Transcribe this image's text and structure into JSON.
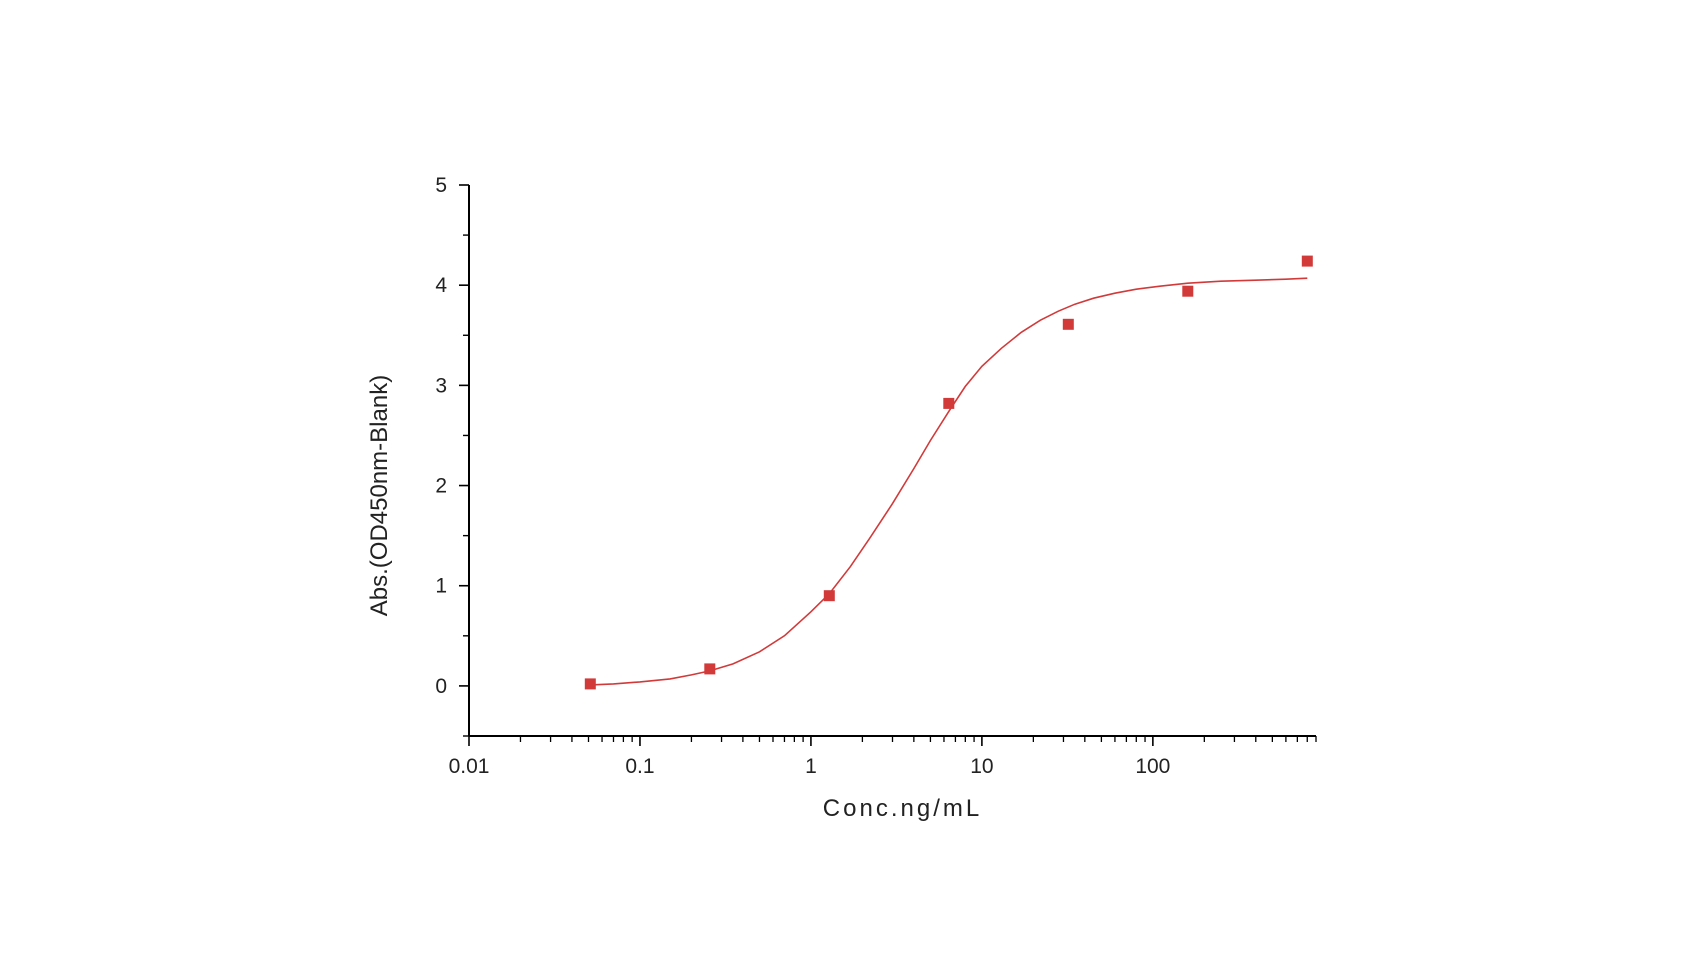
{
  "chart_data": {
    "type": "scatter",
    "title": "",
    "xlabel": "Conc.ng/mL",
    "ylabel": "Abs.(OD450nm-Blank)",
    "x_scale": "log",
    "xlim": [
      0.01,
      900
    ],
    "ylim": [
      -0.5,
      5
    ],
    "x_ticks": [
      0.01,
      0.1,
      1,
      10,
      100
    ],
    "x_tick_labels": [
      "0.01",
      "0.1",
      "1",
      "10",
      "100"
    ],
    "y_ticks": [
      0,
      1,
      2,
      3,
      4,
      5
    ],
    "y_tick_labels": [
      "0",
      "1",
      "2",
      "3",
      "4",
      "5"
    ],
    "grid": false,
    "legend": "none",
    "colors": {
      "series": "#d23a3a",
      "axis": "#000000"
    },
    "series": [
      {
        "type": "scatter",
        "marker": "square",
        "x": [
          0.0512,
          0.256,
          1.28,
          6.4,
          32,
          160,
          800
        ],
        "y": [
          0.02,
          0.17,
          0.9,
          2.82,
          3.61,
          3.94,
          4.24
        ]
      },
      {
        "type": "line",
        "x": [
          0.0512,
          0.07,
          0.1,
          0.15,
          0.2,
          0.256,
          0.35,
          0.5,
          0.7,
          1.0,
          1.28,
          1.7,
          2.2,
          3.0,
          4.0,
          5.0,
          6.4,
          8.0,
          10,
          13,
          17,
          22,
          28,
          35,
          45,
          60,
          80,
          110,
          160,
          250,
          400,
          600,
          800
        ],
        "y": [
          0.01,
          0.02,
          0.04,
          0.07,
          0.11,
          0.15,
          0.22,
          0.34,
          0.5,
          0.74,
          0.92,
          1.19,
          1.47,
          1.82,
          2.17,
          2.45,
          2.74,
          2.99,
          3.19,
          3.37,
          3.53,
          3.65,
          3.74,
          3.81,
          3.87,
          3.92,
          3.96,
          3.99,
          4.02,
          4.04,
          4.05,
          4.06,
          4.07
        ]
      }
    ]
  }
}
